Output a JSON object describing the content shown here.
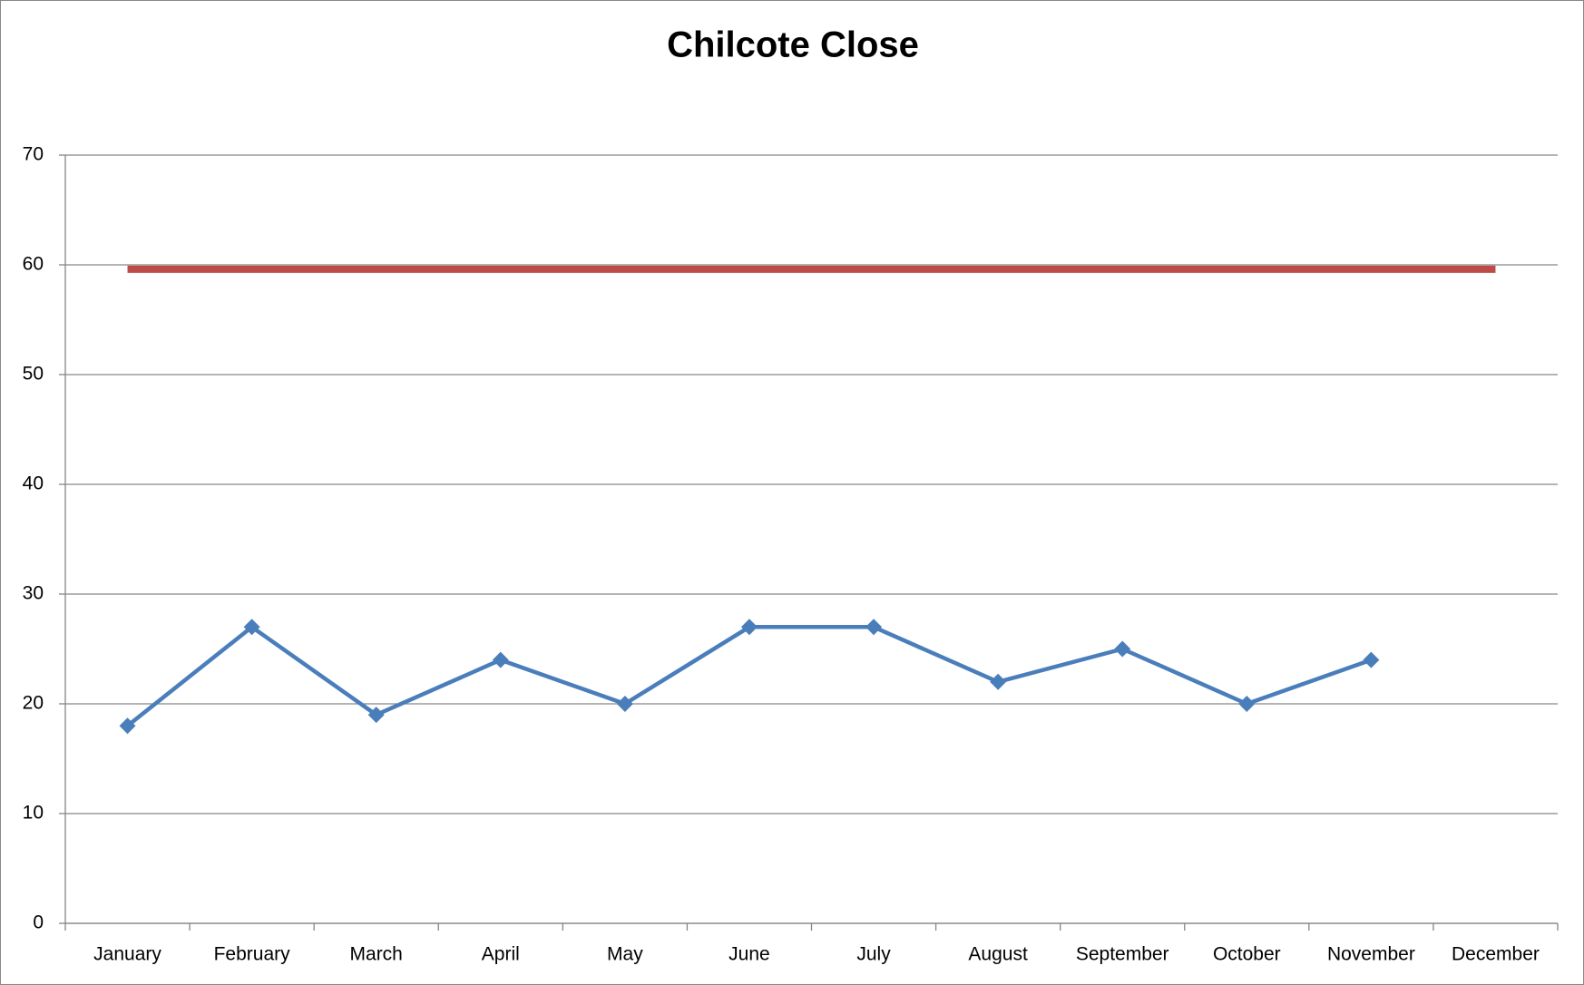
{
  "chart_data": {
    "type": "line",
    "title": "Chilcote Close",
    "categories": [
      "January",
      "February",
      "March",
      "April",
      "May",
      "June",
      "July",
      "August",
      "September",
      "October",
      "November",
      "December"
    ],
    "series": [
      {
        "color": "#4a7ebb",
        "values": [
          18,
          27,
          19,
          24,
          20,
          27,
          27,
          22,
          25,
          20,
          24,
          null
        ],
        "markers": true
      },
      {
        "color": "#be4b48",
        "values": [
          59.6,
          59.6,
          59.6,
          59.6,
          59.6,
          59.6,
          59.6,
          59.6,
          59.6,
          59.6,
          59.6,
          59.6
        ],
        "markers": false
      }
    ],
    "ylim": [
      0,
      70
    ],
    "yticks": [
      0,
      10,
      20,
      30,
      40,
      50,
      60,
      70
    ],
    "grid": true
  }
}
